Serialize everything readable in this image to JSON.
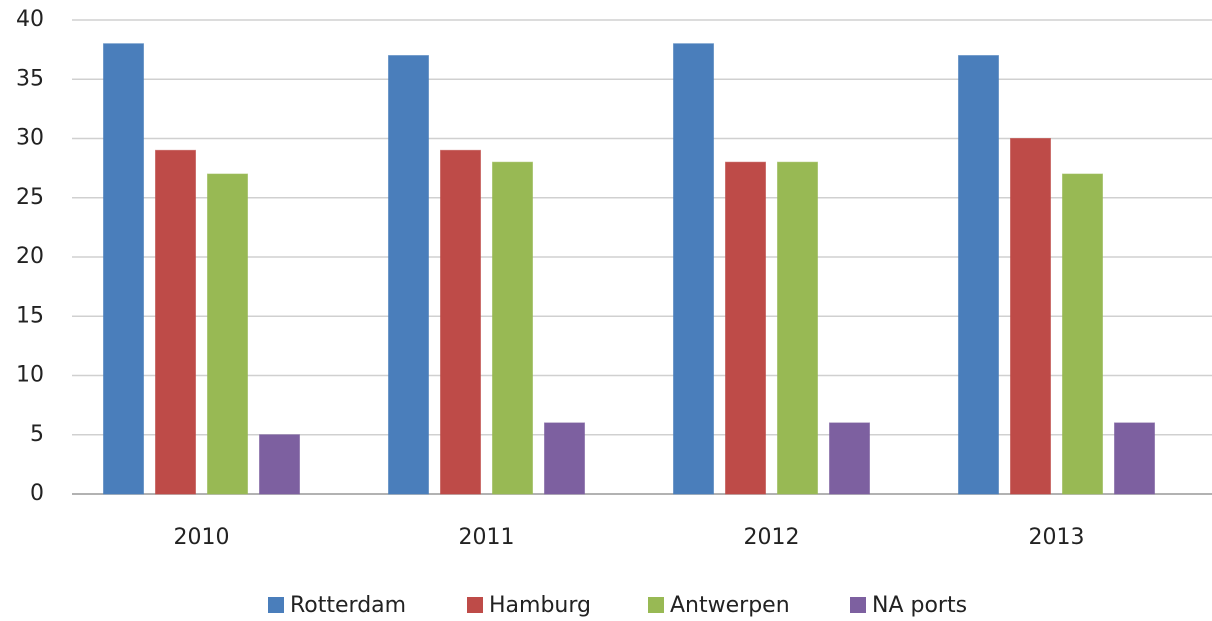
{
  "chart_data": {
    "type": "bar",
    "categories": [
      "2010",
      "2011",
      "2012",
      "2013"
    ],
    "series": [
      {
        "name": "Rotterdam",
        "color": "#4a7ebb",
        "values": [
          38,
          37,
          38,
          37
        ]
      },
      {
        "name": "Hamburg",
        "color": "#be4b48",
        "values": [
          29,
          29,
          28,
          30
        ]
      },
      {
        "name": "Antwerpen",
        "color": "#98b954",
        "values": [
          27,
          28,
          28,
          27
        ]
      },
      {
        "name": "NA ports",
        "color": "#7d60a0",
        "values": [
          5,
          6,
          6,
          6
        ]
      }
    ],
    "ylim": [
      0,
      40
    ],
    "yticks": [
      0,
      5,
      10,
      15,
      20,
      25,
      30,
      35,
      40
    ],
    "grid": true,
    "legend": "bottom"
  }
}
